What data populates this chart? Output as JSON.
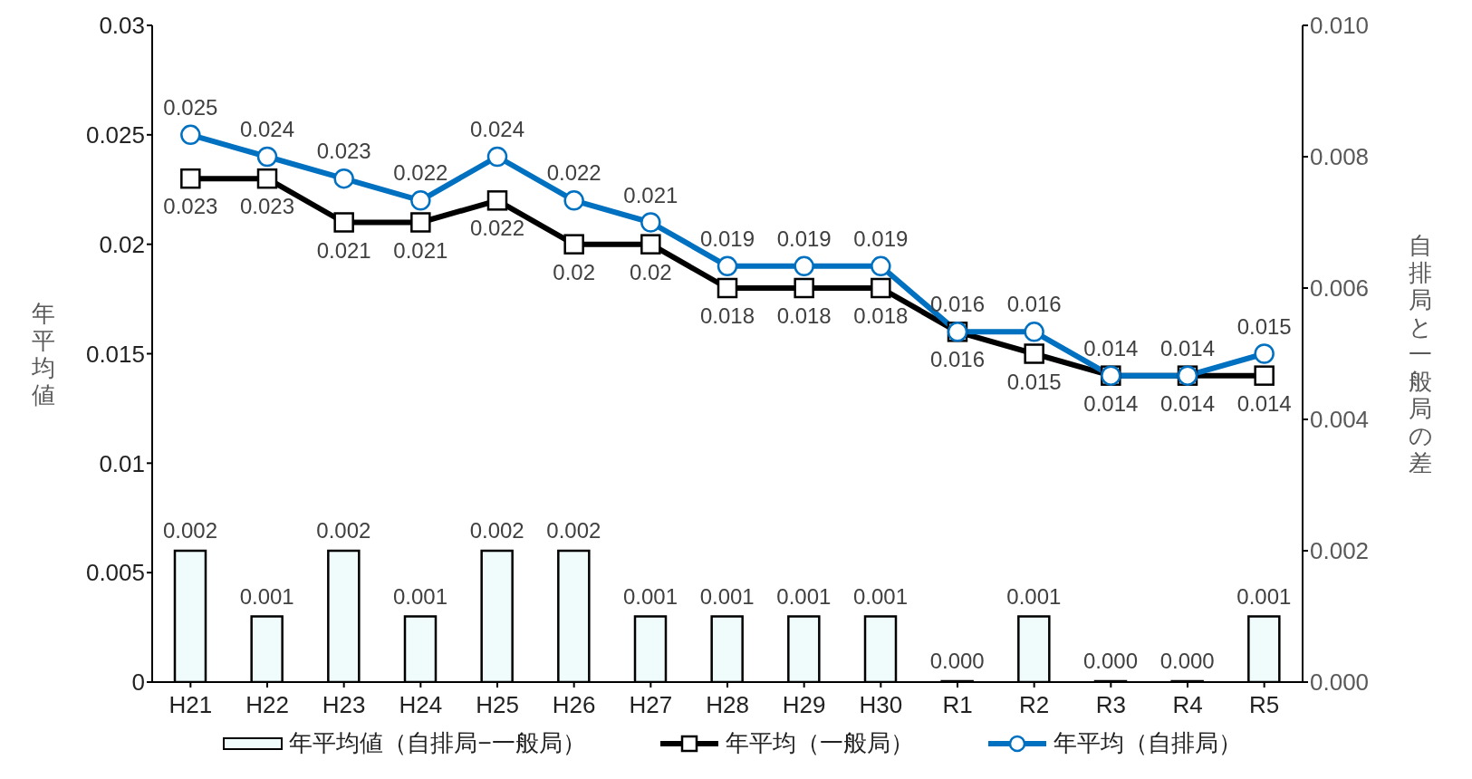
{
  "chart_data": {
    "type": "line",
    "categories": [
      "H21",
      "H22",
      "H23",
      "H24",
      "H25",
      "H26",
      "H27",
      "H28",
      "H29",
      "H30",
      "R1",
      "R2",
      "R3",
      "R4",
      "R5"
    ],
    "ylabel": "年平均値",
    "y2label": "自排局と一般局の差",
    "series": [
      {
        "name": "年平均値（自排局−一般局）",
        "type": "bar",
        "axis": "y2",
        "color": "#f0fcfc",
        "values": [
          0.002,
          0.001,
          0.002,
          0.001,
          0.002,
          0.002,
          0.001,
          0.001,
          0.001,
          0.001,
          0,
          0.001,
          0,
          0,
          0.001
        ],
        "value_labels": [
          "0.002",
          "0.001",
          "0.002",
          "0.001",
          "0.002",
          "0.002",
          "0.001",
          "0.001",
          "0.001",
          "0.001",
          "0.000",
          "0.001",
          "0.000",
          "0.000",
          "0.001"
        ]
      },
      {
        "name": "年平均（一般局）",
        "color": "#000000",
        "marker": "square",
        "values": [
          0.023,
          0.023,
          0.021,
          0.021,
          0.022,
          0.02,
          0.02,
          0.018,
          0.018,
          0.018,
          0.016,
          0.015,
          0.014,
          0.014,
          0.014
        ]
      },
      {
        "name": "年平均（自排局）",
        "color": "#0070c0",
        "marker": "circle",
        "values": [
          0.025,
          0.024,
          0.023,
          0.022,
          0.024,
          0.022,
          0.021,
          0.019,
          0.019,
          0.019,
          0.016,
          0.016,
          0.014,
          0.014,
          0.015
        ]
      }
    ],
    "ylim": [
      0,
      0.03
    ],
    "yticks": [
      0,
      0.005,
      0.01,
      0.015,
      0.02,
      0.025,
      0.03
    ],
    "y2lim": [
      0,
      0.01
    ],
    "y2ticks": [
      {
        "value": 0,
        "label": "0.000"
      },
      {
        "value": 0.002,
        "label": "0.002"
      },
      {
        "value": 0.004,
        "label": "0.004"
      },
      {
        "value": 0.006,
        "label": "0.006"
      },
      {
        "value": 0.008,
        "label": "0.008"
      },
      {
        "value": 0.01,
        "label": "0.010"
      }
    ],
    "data_labels": true,
    "legend": "bottom",
    "grid": false,
    "line_style": "solid"
  }
}
